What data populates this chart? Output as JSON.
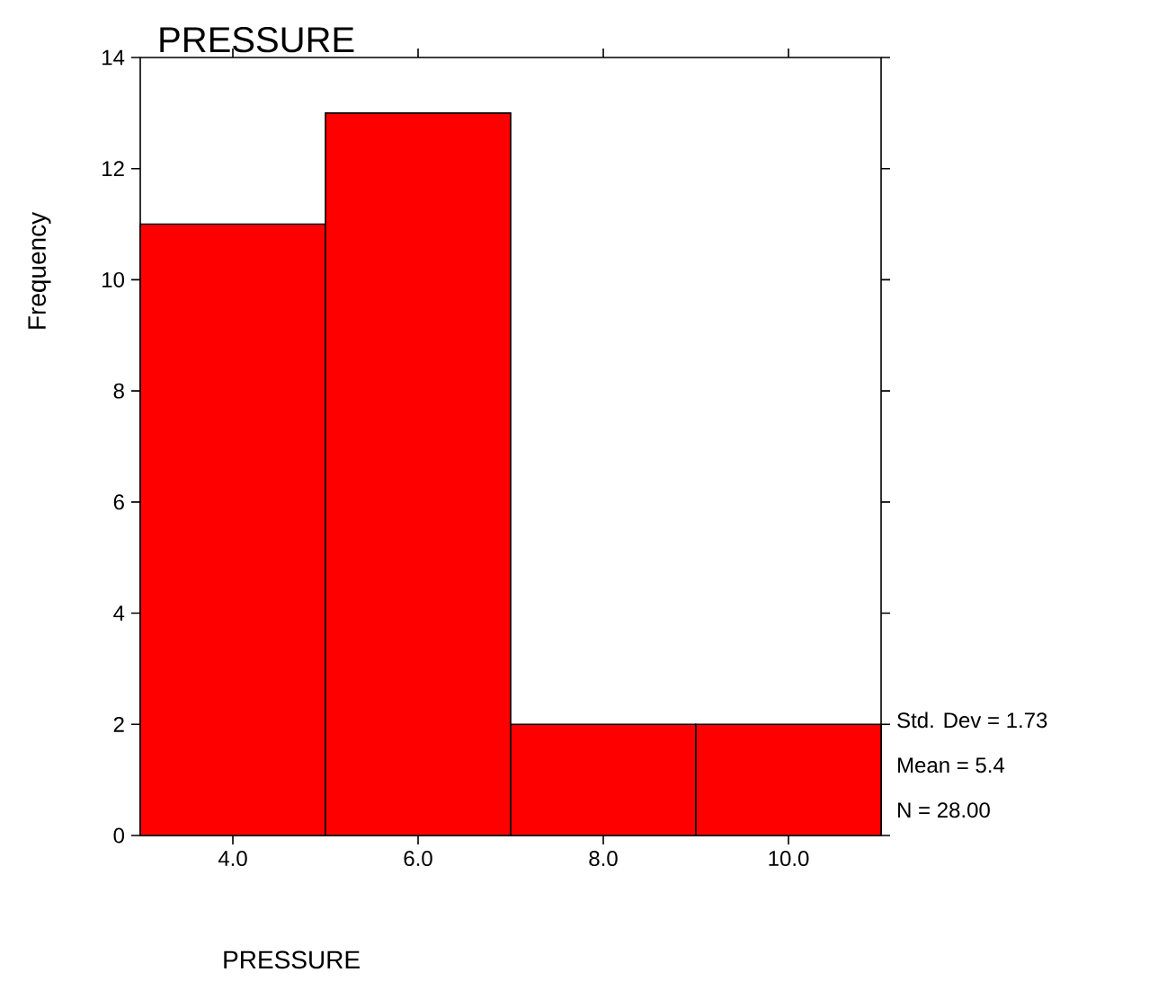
{
  "chart_data": {
    "type": "histogram",
    "title": "PRESSURE",
    "xlabel": "PRESSURE",
    "ylabel": "Frequency",
    "bins": [
      3,
      5,
      7,
      9,
      11
    ],
    "values": [
      11,
      13,
      2,
      2
    ],
    "color": "#ff0000",
    "xlim": [
      3,
      11
    ],
    "ylim": [
      0,
      14
    ],
    "xticks": [
      {
        "value": 4,
        "label": "4.0"
      },
      {
        "value": 6,
        "label": "6.0"
      },
      {
        "value": 8,
        "label": "8.0"
      },
      {
        "value": 10,
        "label": "10.0"
      }
    ],
    "yticks": [
      0,
      2,
      4,
      6,
      8,
      10,
      12,
      14
    ],
    "annotations": [
      "Std. Dev = 1.73",
      "Mean = 5.4",
      "N = 28.00"
    ]
  }
}
